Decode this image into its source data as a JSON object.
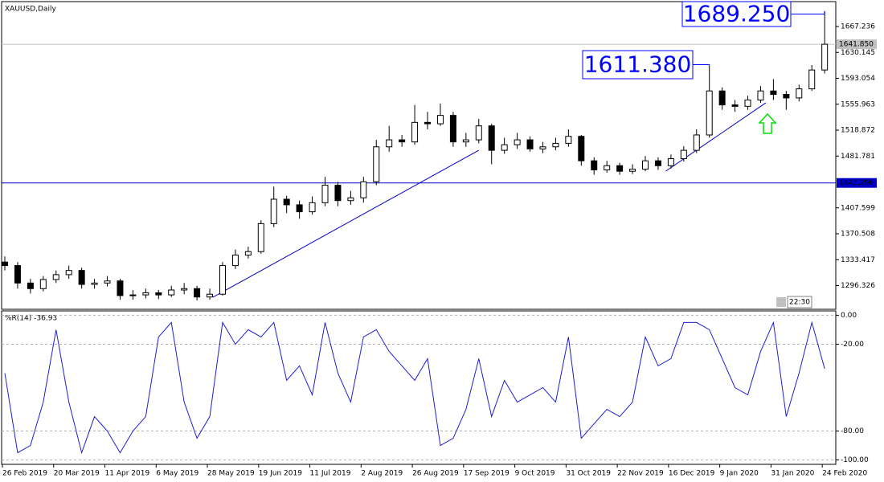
{
  "chart_data": [
    {
      "type": "candlestick",
      "title": "XAUUSD,Daily",
      "open": [
        1330,
        1325,
        1300,
        1292,
        1305,
        1312,
        1318,
        1298,
        1300,
        1303,
        1282,
        1283,
        1286,
        1283,
        1290,
        1292,
        1280,
        1284,
        1325,
        1340,
        1345,
        1385,
        1420,
        1412,
        1402,
        1415,
        1440,
        1418,
        1422,
        1445,
        1495,
        1505,
        1502,
        1530,
        1528,
        1540,
        1502,
        1505,
        1525,
        1490,
        1498,
        1505,
        1492,
        1495,
        1500,
        1510,
        1475,
        1462,
        1468,
        1460,
        1463,
        1475,
        1468,
        1478,
        1490,
        1512,
        1575,
        1555,
        1553,
        1562,
        1575,
        1570,
        1565,
        1578,
        1605
      ],
      "high": [
        1338,
        1330,
        1306,
        1310,
        1318,
        1325,
        1322,
        1306,
        1310,
        1306,
        1290,
        1292,
        1290,
        1296,
        1300,
        1296,
        1292,
        1330,
        1348,
        1352,
        1390,
        1438,
        1425,
        1418,
        1424,
        1452,
        1445,
        1432,
        1452,
        1505,
        1525,
        1512,
        1555,
        1545,
        1557,
        1545,
        1515,
        1535,
        1528,
        1508,
        1515,
        1510,
        1502,
        1508,
        1520,
        1512,
        1480,
        1475,
        1472,
        1470,
        1482,
        1480,
        1484,
        1496,
        1520,
        1611.38,
        1580,
        1562,
        1568,
        1582,
        1592,
        1575,
        1584,
        1612,
        1689.25
      ],
      "low": [
        1318,
        1292,
        1285,
        1288,
        1300,
        1306,
        1292,
        1292,
        1295,
        1276,
        1276,
        1278,
        1277,
        1280,
        1284,
        1275,
        1276,
        1282,
        1320,
        1335,
        1342,
        1380,
        1400,
        1392,
        1398,
        1410,
        1410,
        1412,
        1415,
        1440,
        1488,
        1495,
        1498,
        1520,
        1525,
        1495,
        1495,
        1500,
        1470,
        1485,
        1492,
        1488,
        1486,
        1490,
        1495,
        1468,
        1455,
        1458,
        1455,
        1456,
        1460,
        1462,
        1464,
        1474,
        1486,
        1508,
        1548,
        1545,
        1548,
        1558,
        1562,
        1548,
        1560,
        1575,
        1600
      ],
      "close": [
        1325,
        1300,
        1292,
        1305,
        1312,
        1318,
        1298,
        1300,
        1303,
        1282,
        1283,
        1286,
        1283,
        1290,
        1292,
        1280,
        1284,
        1325,
        1340,
        1345,
        1385,
        1420,
        1412,
        1402,
        1415,
        1440,
        1418,
        1422,
        1445,
        1495,
        1505,
        1502,
        1530,
        1528,
        1540,
        1502,
        1505,
        1525,
        1490,
        1498,
        1505,
        1492,
        1495,
        1500,
        1510,
        1475,
        1462,
        1468,
        1460,
        1463,
        1475,
        1468,
        1478,
        1490,
        1512,
        1575,
        1555,
        1553,
        1562,
        1575,
        1570,
        1565,
        1578,
        1605,
        1641.85
      ],
      "up_color": "#ffffff",
      "down_color": "#000000",
      "outline_color": "#000000",
      "ylim": [
        1262.4,
        1702.9
      ],
      "yticks": [
        1296.326,
        1333.417,
        1370.508,
        1407.599,
        1481.781,
        1518.872,
        1555.963,
        1593.054,
        1630.145,
        1667.236
      ],
      "hlines": [
        {
          "value": 1443.296,
          "color": "#0000c8"
        }
      ],
      "price_line": {
        "value": 1641.85,
        "label": "1641.850",
        "color": "#c0c0c0"
      },
      "trendlines": [
        {
          "x": [
            16.25,
            37
          ],
          "y": [
            1279.7,
            1490.1
          ],
          "color": "#0000c8"
        },
        {
          "x": [
            51.6,
            59.4
          ],
          "y": [
            1460.2,
            1557.9
          ],
          "color": "#0000c8"
        }
      ],
      "annotations": [
        {
          "label": "1689.250",
          "value": 1689.25,
          "color": "#0000ff"
        },
        {
          "label": "1611.380",
          "value": 1611.38,
          "color": "#0000ff"
        }
      ],
      "clock": "22:30"
    },
    {
      "type": "line",
      "title": "%R(14) -36.93",
      "categories": [
        "26 Feb 2019",
        null,
        null,
        null,
        "20 Mar 2019",
        null,
        null,
        null,
        "11 Apr 2019",
        null,
        null,
        null,
        "6 May 2019",
        null,
        null,
        null,
        "28 May 2019",
        null,
        null,
        null,
        "19 Jun 2019",
        null,
        null,
        null,
        "11 Jul 2019",
        null,
        null,
        null,
        "2 Aug 2019",
        null,
        null,
        null,
        "26 Aug 2019",
        null,
        null,
        null,
        "17 Sep 2019",
        null,
        null,
        null,
        "9 Oct 2019",
        null,
        null,
        null,
        "31 Oct 2019",
        null,
        null,
        null,
        "22 Nov 2019",
        null,
        null,
        null,
        "16 Dec 2019",
        null,
        null,
        null,
        "9 Jan 2020",
        null,
        null,
        null,
        "31 Jan 2020",
        null,
        null,
        null,
        "24 Feb 2020"
      ],
      "values": [
        -40,
        -95,
        -90,
        -60,
        -10,
        -60,
        -95,
        -70,
        -80,
        -95,
        -80,
        -70,
        -15,
        -5,
        -60,
        -85,
        -70,
        -5,
        -20,
        -10,
        -15,
        -5,
        -45,
        -35,
        -55,
        -5,
        -40,
        -60,
        -15,
        -10,
        -25,
        -35,
        -45,
        -30,
        -90,
        -85,
        -65,
        -30,
        -70,
        -45,
        -60,
        -55,
        -50,
        -60,
        -15,
        -85,
        -75,
        -65,
        -70,
        -60,
        -15,
        -35,
        -30,
        -5,
        -5,
        -10,
        -30,
        -50,
        -55,
        -25,
        -5,
        -70,
        -40,
        -5,
        -36.93
      ],
      "color": "#1e1ed2",
      "ylim": [
        -103,
        3
      ],
      "yticks": [
        {
          "value": 0,
          "label": "0.00"
        },
        {
          "value": -20,
          "label": "-20.00"
        },
        {
          "value": -80,
          "label": "-80.00"
        },
        {
          "value": -100,
          "label": "-100.00"
        }
      ],
      "grid": true
    }
  ]
}
